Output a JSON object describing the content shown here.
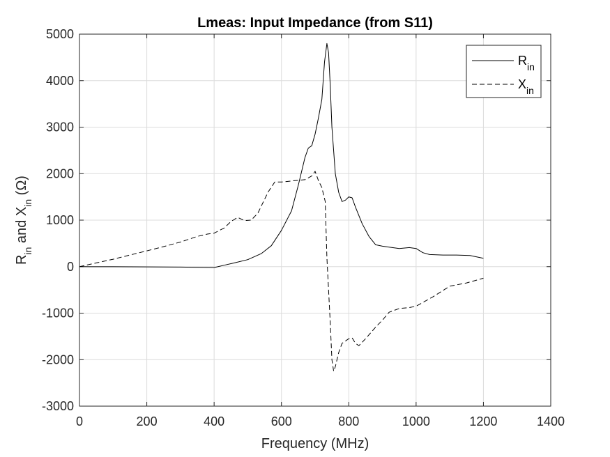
{
  "chart_data": {
    "type": "line",
    "title": "Lmeas: Input Impedance (from S11)",
    "xlabel": "Frequency (MHz)",
    "ylabel": {
      "parts": [
        "R",
        "in",
        " and X",
        "in",
        " (Ω)"
      ]
    },
    "xlim": [
      0,
      1400
    ],
    "ylim": [
      -3000,
      5000
    ],
    "xticks": [
      0,
      200,
      400,
      600,
      800,
      1000,
      1200,
      1400
    ],
    "yticks": [
      -3000,
      -2000,
      -1000,
      0,
      1000,
      2000,
      3000,
      4000,
      5000
    ],
    "grid": true,
    "legend_position": "top-right",
    "series": [
      {
        "name": "R",
        "name_sub": "in",
        "line_style": "solid",
        "color": "#000000",
        "x": [
          0,
          100,
          200,
          300,
          350,
          400,
          430,
          460,
          500,
          540,
          570,
          600,
          630,
          650,
          670,
          680,
          690,
          700,
          710,
          720,
          728,
          735,
          740,
          745,
          750,
          760,
          770,
          780,
          790,
          800,
          810,
          820,
          840,
          860,
          880,
          900,
          920,
          950,
          980,
          1000,
          1020,
          1040,
          1080,
          1120,
          1160,
          1200
        ],
        "y": [
          0,
          -2,
          -5,
          -10,
          -15,
          -20,
          30,
          80,
          150,
          280,
          450,
          780,
          1200,
          1750,
          2350,
          2550,
          2600,
          2850,
          3200,
          3600,
          4400,
          4800,
          4600,
          3900,
          3000,
          2000,
          1600,
          1400,
          1430,
          1500,
          1480,
          1280,
          920,
          650,
          470,
          440,
          420,
          390,
          410,
          390,
          300,
          260,
          250,
          250,
          240,
          180
        ]
      },
      {
        "name": "X",
        "name_sub": "in",
        "line_style": "dashed",
        "color": "#000000",
        "x": [
          0,
          50,
          100,
          150,
          200,
          250,
          300,
          350,
          380,
          400,
          430,
          450,
          470,
          490,
          510,
          530,
          560,
          580,
          600,
          640,
          670,
          690,
          700,
          710,
          720,
          730,
          735,
          740,
          745,
          750,
          755,
          760,
          770,
          780,
          800,
          810,
          820,
          830,
          850,
          880,
          900,
          920,
          950,
          980,
          1000,
          1050,
          1100,
          1150,
          1200
        ],
        "y": [
          0,
          80,
          160,
          250,
          340,
          430,
          530,
          650,
          700,
          720,
          830,
          970,
          1060,
          990,
          1000,
          1150,
          1600,
          1820,
          1820,
          1850,
          1870,
          1950,
          2050,
          1850,
          1700,
          1400,
          200,
          -500,
          -1200,
          -2000,
          -2250,
          -2150,
          -1850,
          -1650,
          -1550,
          -1530,
          -1650,
          -1700,
          -1550,
          -1300,
          -1150,
          -980,
          -900,
          -880,
          -850,
          -650,
          -420,
          -350,
          -250
        ]
      }
    ]
  }
}
